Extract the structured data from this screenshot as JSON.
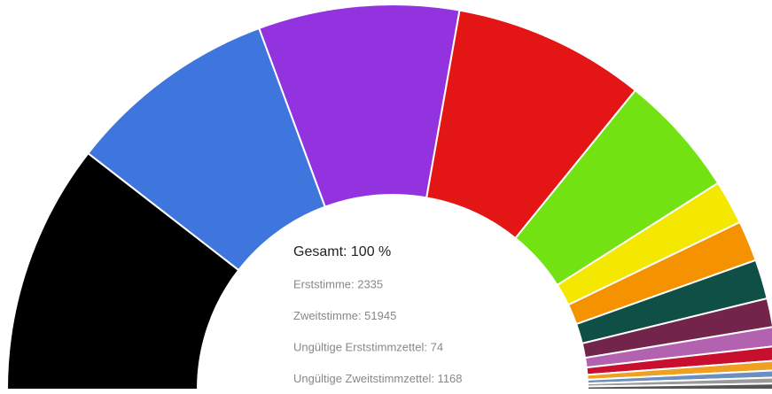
{
  "chart_data": {
    "type": "semi-donut",
    "values": [
      21,
      17.7,
      16.8,
      16.1,
      10.3,
      3.7,
      3.4,
      3.3,
      2.4,
      1.6,
      1.2,
      0.8,
      0.6,
      0.5,
      0.5
    ],
    "colors": [
      "#000000",
      "#3f76dd",
      "#9333e0",
      "#e31515",
      "#72e212",
      "#f5e800",
      "#f59200",
      "#0f4f45",
      "#73244b",
      "#b362b0",
      "#c8102e",
      "#f0a020",
      "#6a8fc0",
      "#9a9a9a",
      "#555555"
    ],
    "center_title": "Gesamt: 100 %",
    "center_lines": [
      "Erststimme: 2335",
      "Zweitstimme: 51945",
      "Ungültige Erststimmzettel: 74",
      "Ungültige Zweitstimmzettel: 1168"
    ]
  }
}
